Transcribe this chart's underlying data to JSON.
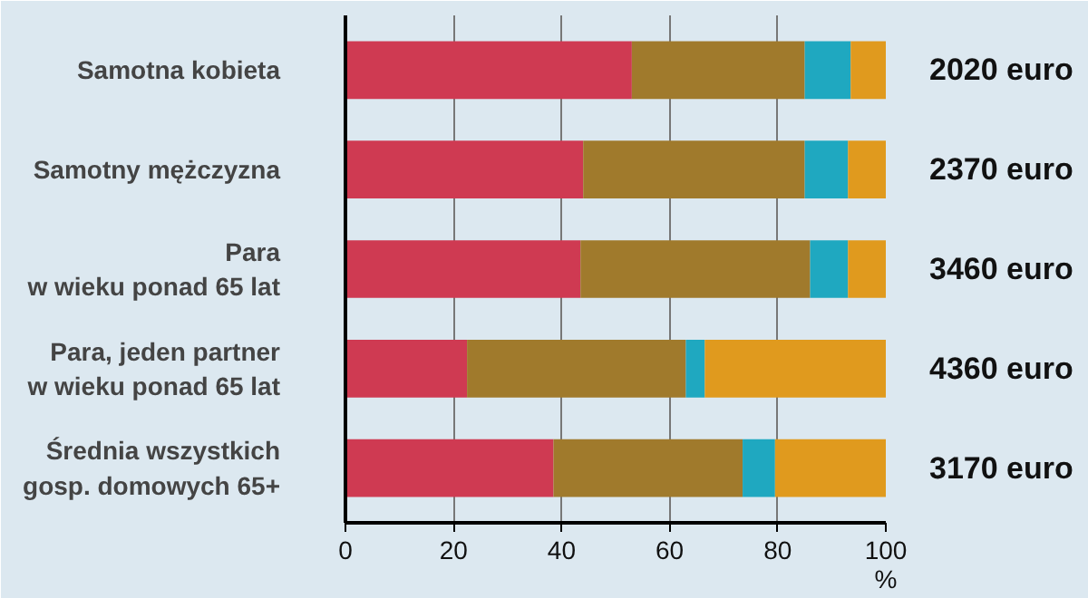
{
  "chart_data": {
    "type": "bar",
    "orientation": "horizontal",
    "stacked": true,
    "categories": [
      "Samotna kobieta",
      "Samotny mężczyzna",
      "Para\nw wieku ponad 65 lat",
      "Para, jeden partner\nw wieku ponad 65 lat",
      "Średnia wszystkich\ngosp. domowych 65+"
    ],
    "series": [
      {
        "color": "#cf3a52",
        "values": [
          53,
          44,
          43.5,
          22.5,
          38.5
        ]
      },
      {
        "color": "#a07a2c",
        "values": [
          32,
          41,
          42.5,
          40.5,
          35
        ]
      },
      {
        "color": "#1fa8c0",
        "values": [
          8.5,
          8,
          7,
          3.5,
          6
        ]
      },
      {
        "color": "#e09a1e",
        "values": [
          6.5,
          7,
          7,
          33.5,
          20.5
        ]
      }
    ],
    "xlim": [
      0,
      100
    ],
    "xticks": [
      0,
      20,
      40,
      60,
      80,
      100
    ],
    "xlabel": "%",
    "grid": "x",
    "annotations": [
      "2020 euro",
      "2370 euro",
      "3460 euro",
      "4360 euro",
      "3170 euro"
    ]
  }
}
